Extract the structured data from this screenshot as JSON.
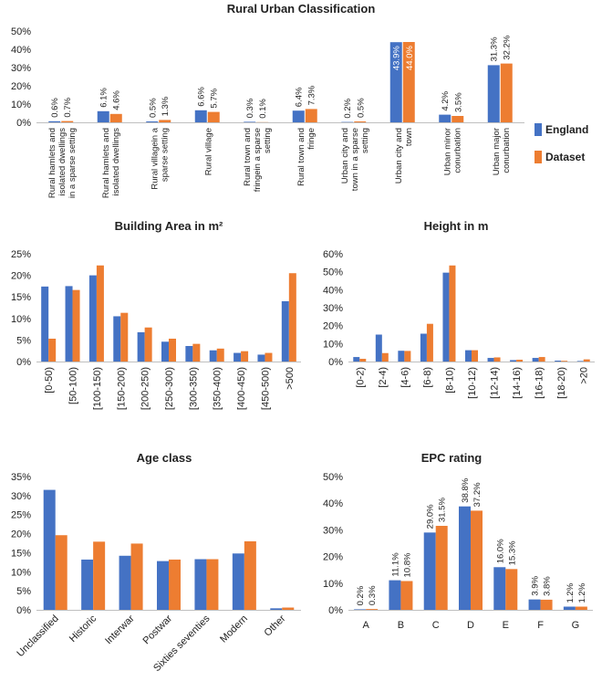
{
  "colors": {
    "england": "#4472C4",
    "dataset": "#ED7D31"
  },
  "legend": {
    "england": "England",
    "dataset": "Dataset"
  },
  "chart_data": [
    {
      "id": "rural",
      "type": "bar",
      "title": "Rural Urban Classification",
      "categories": [
        [
          "Rural hamlets and",
          "isolated dwellings",
          "in a sparse setting"
        ],
        [
          "Rural hamlets and",
          "isolated dwellings"
        ],
        [
          "Rural villagein a",
          "sparse setting"
        ],
        [
          "Rural village"
        ],
        [
          "Rural town and",
          "fringein a sparse",
          "setting"
        ],
        [
          "Rural town and",
          "fringe"
        ],
        [
          "Urban city and",
          "town in a sparse",
          "setting"
        ],
        [
          "Urban city and",
          "town"
        ],
        [
          "Urban minor",
          "conurbation"
        ],
        [
          "Urban major",
          "conurbation"
        ]
      ],
      "series": [
        {
          "name": "England",
          "values": [
            0.6,
            6.1,
            0.5,
            6.6,
            0.3,
            6.4,
            0.2,
            43.9,
            4.2,
            31.3
          ],
          "labels": [
            "0.6%",
            "6.1%",
            "0.5%",
            "6.6%",
            "0.3%",
            "6.4%",
            "0.2%",
            "43.9%",
            "4.2%",
            "31.3%"
          ]
        },
        {
          "name": "Dataset",
          "values": [
            0.7,
            4.6,
            1.3,
            5.7,
            0.1,
            7.3,
            0.5,
            44.0,
            3.5,
            32.2
          ],
          "labels": [
            "0.7%",
            "4.6%",
            "1.3%",
            "5.7%",
            "0.1%",
            "7.3%",
            "0.5%",
            "44.0%",
            "3.5%",
            "32.2%"
          ]
        }
      ],
      "ylim": [
        0,
        50
      ],
      "yticks": [
        "0%",
        "10%",
        "20%",
        "30%",
        "40%",
        "50%"
      ],
      "data_labels": true,
      "legend_position": "right"
    },
    {
      "id": "area",
      "type": "bar",
      "title": "Building Area in m²",
      "categories": [
        "[0-50)",
        "[50-100)",
        "[100-150)",
        "[150-200)",
        "[200-250)",
        "[250-300)",
        "[300-350)",
        "[350-400)",
        "[400-450)",
        "[450-500)",
        ">500"
      ],
      "series": [
        {
          "name": "England",
          "values": [
            17.4,
            17.5,
            20.0,
            10.5,
            6.8,
            4.6,
            3.6,
            2.6,
            2.0,
            1.6,
            14.0
          ]
        },
        {
          "name": "Dataset",
          "values": [
            5.3,
            16.6,
            22.3,
            11.3,
            7.9,
            5.3,
            4.1,
            3.0,
            2.4,
            2.0,
            20.5
          ]
        }
      ],
      "ylim": [
        0,
        25
      ],
      "yticks": [
        "0%",
        "5%",
        "10%",
        "15%",
        "20%",
        "25%"
      ],
      "data_labels": false
    },
    {
      "id": "height",
      "type": "bar",
      "title": "Height in m",
      "categories": [
        "[0-2)",
        "[2-4)",
        "[4-6)",
        "[6-8)",
        "[8-10)",
        "[10-12)",
        "[12-14)",
        "[14-16)",
        "[16-18)",
        "[18-20)",
        ">20"
      ],
      "series": [
        {
          "name": "England",
          "values": [
            2.5,
            15.0,
            6.0,
            15.5,
            49.5,
            6.3,
            2.0,
            0.8,
            2.0,
            0.5,
            0.3
          ]
        },
        {
          "name": "Dataset",
          "values": [
            1.5,
            4.7,
            5.9,
            21.0,
            53.5,
            6.3,
            2.3,
            1.0,
            2.5,
            0.4,
            1.2
          ]
        }
      ],
      "ylim": [
        0,
        60
      ],
      "yticks": [
        "0%",
        "10%",
        "20%",
        "30%",
        "40%",
        "50%",
        "60%"
      ],
      "data_labels": false
    },
    {
      "id": "age",
      "type": "bar",
      "title": "Age class",
      "categories": [
        "Unclassified",
        "Historic",
        "Interwar",
        "Postwar",
        "Sixties seventies",
        "Modern",
        "Other"
      ],
      "series": [
        {
          "name": "England",
          "values": [
            31.5,
            13.2,
            14.2,
            12.8,
            13.3,
            14.8,
            0.4
          ]
        },
        {
          "name": "Dataset",
          "values": [
            19.6,
            17.9,
            17.4,
            13.2,
            13.3,
            18.0,
            0.6
          ]
        }
      ],
      "ylim": [
        0,
        35
      ],
      "yticks": [
        "0%",
        "5%",
        "10%",
        "15%",
        "20%",
        "25%",
        "30%",
        "35%"
      ],
      "data_labels": false
    },
    {
      "id": "epc",
      "type": "bar",
      "title": "EPC rating",
      "categories": [
        "A",
        "B",
        "C",
        "D",
        "E",
        "F",
        "G"
      ],
      "series": [
        {
          "name": "England",
          "values": [
            0.2,
            11.1,
            29.0,
            38.8,
            16.0,
            3.9,
            1.2
          ],
          "labels": [
            "0.2%",
            "11.1%",
            "29.0%",
            "38.8%",
            "16.0%",
            "3.9%",
            "1.2%"
          ]
        },
        {
          "name": "Dataset",
          "values": [
            0.3,
            10.8,
            31.5,
            37.2,
            15.3,
            3.8,
            1.2
          ],
          "labels": [
            "0.3%",
            "10.8%",
            "31.5%",
            "37.2%",
            "15.3%",
            "3.8%",
            "1.2%"
          ]
        }
      ],
      "ylim": [
        0,
        50
      ],
      "yticks": [
        "0%",
        "10%",
        "20%",
        "30%",
        "40%",
        "50%"
      ],
      "data_labels": true
    }
  ]
}
